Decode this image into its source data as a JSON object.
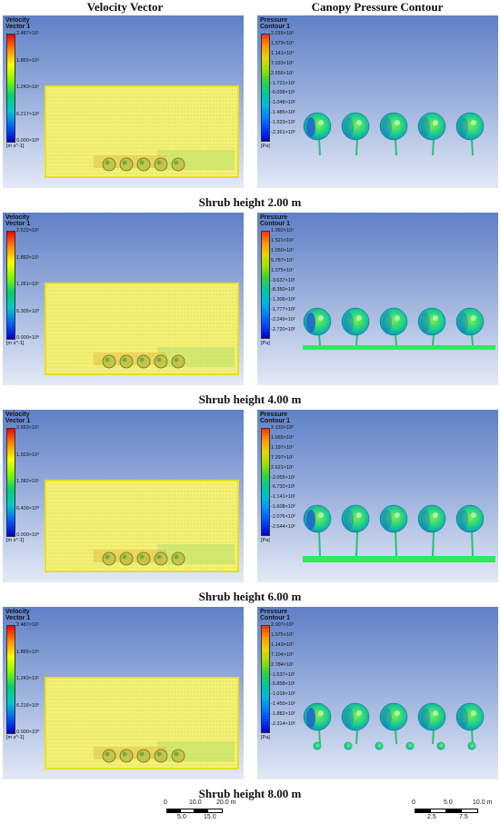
{
  "headers": {
    "left": "Velocity Vector",
    "right": "Canopy Pressure Contour"
  },
  "velocity_label": "Velocity\nVector 1",
  "pressure_label": "Pressure\nContour 1",
  "velocity_unit": "[m s^-1]",
  "pressure_unit": "[Pa]",
  "rows": [
    {
      "caption": "Shrub height 2.00 m",
      "velocity_ticks": [
        "2.487×10¹",
        "1.865×10¹",
        "1.243×10¹",
        "6.217×10⁰",
        "0.000×10⁰"
      ],
      "pressure_ticks": [
        "2.016×10²",
        "1.579×10²",
        "1.141×10²",
        "7.033×10¹",
        "2.656×10¹",
        "-1.721×10¹",
        "-6.098×10¹",
        "-1.048×10²",
        "-1.485×10²",
        "-1.923×10²",
        "-2.361×10²"
      ]
    },
    {
      "caption": "Shrub height 4.00 m",
      "velocity_ticks": [
        "2.522×10¹",
        "1.892×10¹",
        "1.261×10¹",
        "6.305×10⁰",
        "0.000×10⁰"
      ],
      "pressure_ticks": [
        "1.992×10²",
        "1.521×10²",
        "1.050×10²",
        "5.787×10¹",
        "1.075×10¹",
        "-3.637×10¹",
        "-8.350×10¹",
        "-1.306×10²",
        "-1.777×10²",
        "-2.249×10²",
        "-2.720×10²"
      ]
    },
    {
      "caption": "Shrub height 6.00 m",
      "velocity_ticks": [
        "2.563×10¹",
        "1.923×10¹",
        "1.282×10¹",
        "6.409×10⁰",
        "0.000×10⁰"
      ],
      "pressure_ticks": [
        "2.133×10²",
        "1.665×10²",
        "1.197×10²",
        "7.297×10¹",
        "2.621×10¹",
        "-2.055×10¹",
        "-6.732×10¹",
        "-1.141×10²",
        "-1.608×10²",
        "-2.076×10²",
        "-2.544×10²"
      ]
    },
    {
      "caption": "Shrub height 8.00 m",
      "velocity_ticks": [
        "2.487×10¹",
        "1.865×10¹",
        "1.243×10¹",
        "6.216×10⁰",
        "0.000×10⁰"
      ],
      "pressure_ticks": [
        "2.007×10²",
        "1.575×10²",
        "1.143×10²",
        "7.104×10¹",
        "2.784×10¹",
        "-1.537×10¹",
        "-5.858×10¹",
        "-1.018×10²",
        "-1.450×10²",
        "-1.882×10²",
        "-2.314×10²"
      ]
    }
  ],
  "scalebars": {
    "left": {
      "top": [
        "0",
        "10.0",
        "20.0 m"
      ],
      "bottom": [
        "5.0",
        "15.0"
      ]
    },
    "right": {
      "top": [
        "0",
        "5.0",
        "10.0 m"
      ],
      "bottom": [
        "2.5",
        "7.5"
      ]
    }
  }
}
